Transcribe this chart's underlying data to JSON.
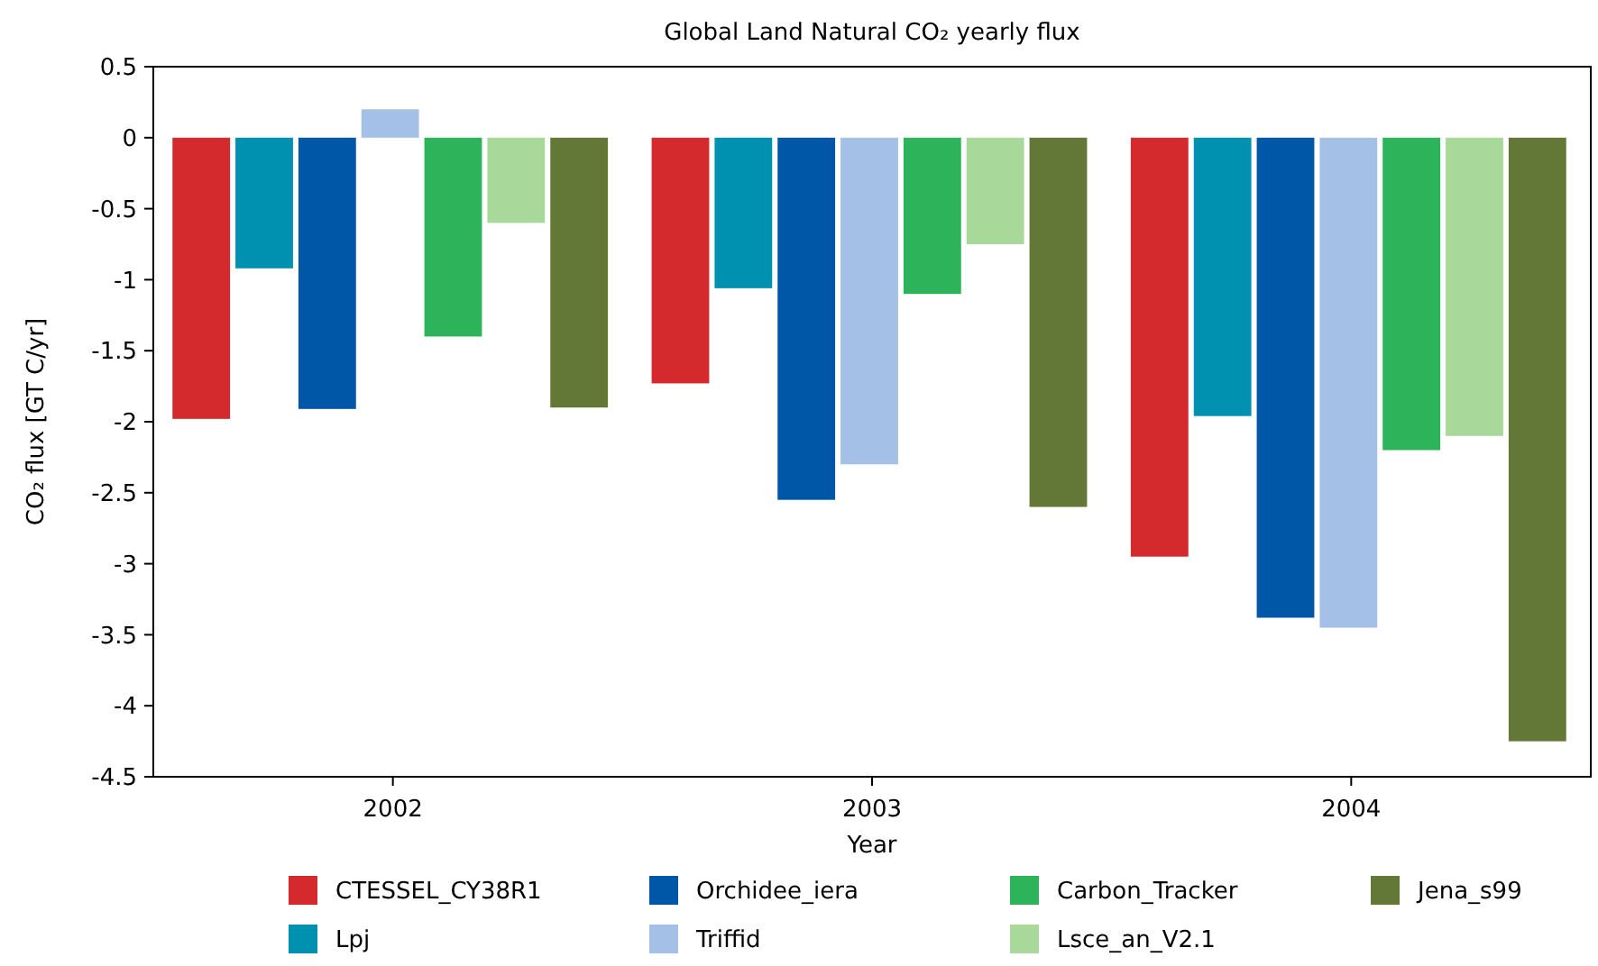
{
  "chart_data": {
    "type": "bar",
    "title": "Global Land Natural CO₂ yearly flux",
    "xlabel": "Year",
    "ylabel": "CO₂ flux [GT C/yr]",
    "categories": [
      "2002",
      "2003",
      "2004"
    ],
    "series": [
      {
        "name": "CTESSEL_CY38R1",
        "color": "#d42a2e",
        "values": [
          -1.98,
          -1.73,
          -2.95
        ]
      },
      {
        "name": "Lpj",
        "color": "#0090b0",
        "values": [
          -0.92,
          -1.06,
          -1.96
        ]
      },
      {
        "name": "Orchidee_iera",
        "color": "#0057a8",
        "values": [
          -1.91,
          -2.55,
          -3.38
        ]
      },
      {
        "name": "Triffid",
        "color": "#a4c0e6",
        "values": [
          0.2,
          -2.3,
          -3.45
        ]
      },
      {
        "name": "Carbon_Tracker",
        "color": "#2db45a",
        "values": [
          -1.4,
          -1.1,
          -2.2
        ]
      },
      {
        "name": "Lsce_an_V2.1",
        "color": "#a8d89a",
        "values": [
          -0.6,
          -0.75,
          -2.1
        ]
      },
      {
        "name": "Jena_s99",
        "color": "#637837",
        "values": [
          -1.9,
          -2.6,
          -4.25
        ]
      }
    ],
    "ylim": [
      -4.5,
      0.5
    ],
    "yticks": [
      0.5,
      0,
      -0.5,
      -1,
      -1.5,
      -2,
      -2.5,
      -3,
      -3.5,
      -4,
      -4.5
    ],
    "grid": false,
    "legend": "bottom"
  }
}
